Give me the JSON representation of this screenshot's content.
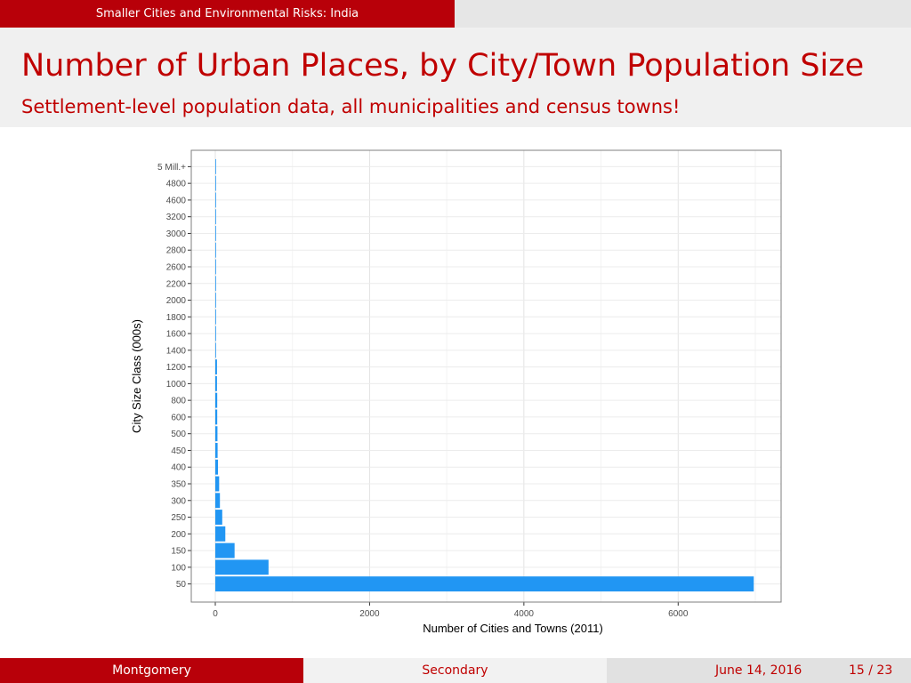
{
  "header": {
    "section": "Smaller Cities and Environmental Risks: India"
  },
  "frame": {
    "title": "Number of Urban Places, by City/Town Population Size",
    "subtitle": "Settlement-level population data, all municipalities and census towns!"
  },
  "footer": {
    "author": "Montgomery",
    "middle": "Secondary",
    "date": "June 14, 2016",
    "page": "15 / 23"
  },
  "colors": {
    "theme_red": "#b80009",
    "title_red": "#c00000",
    "bar": "#2196f3"
  },
  "chart_data": {
    "type": "bar",
    "orientation": "horizontal",
    "xlabel": "Number of Cities and Towns (2011)",
    "ylabel": "City Size Class (000s)",
    "xlim": [
      0,
      7000
    ],
    "xticks": [
      0,
      2000,
      4000,
      6000
    ],
    "grid": true,
    "categories": [
      "50",
      "100",
      "150",
      "200",
      "250",
      "300",
      "350",
      "400",
      "450",
      "500",
      "600",
      "800",
      "1000",
      "1200",
      "1400",
      "1600",
      "1800",
      "2000",
      "2200",
      "2600",
      "2800",
      "3000",
      "3200",
      "4600",
      "4800",
      "5 Mill.+"
    ],
    "values": [
      6980,
      690,
      250,
      130,
      90,
      60,
      50,
      35,
      30,
      28,
      25,
      25,
      22,
      22,
      8,
      6,
      5,
      4,
      2,
      2,
      1,
      2,
      1,
      1,
      1,
      3
    ]
  }
}
